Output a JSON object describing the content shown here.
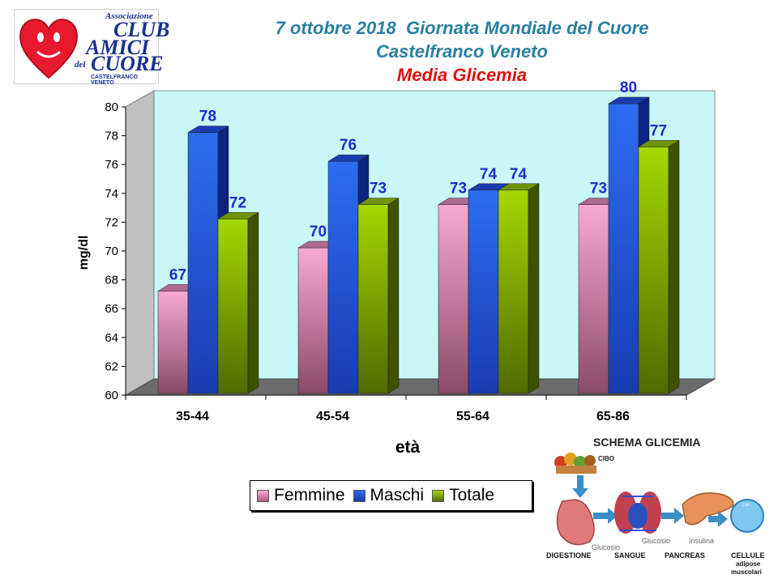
{
  "logo": {
    "line1": "Associazione",
    "line2": "CLUB",
    "line3": "AMICI",
    "line4a": "del",
    "line4b": "CUORE",
    "line5": "CASTELFRANCO VENETO"
  },
  "header": {
    "title": "7 ottobre 2018  Giornata Mondiale del Cuore",
    "subtitle": "Castelfranco Veneto",
    "chart_title": "Media Glicemia"
  },
  "colors": {
    "femmine": "#f4a6cf",
    "maschi": "#1f5fe0",
    "totale": "#9cd000",
    "background": "#c9f7f7",
    "label": "#1a2cd0"
  },
  "chart_data": {
    "type": "bar",
    "title": "Media Glicemia",
    "xlabel": "età",
    "ylabel": "mg/dl",
    "ylim": [
      60,
      80
    ],
    "yticks": [
      60,
      62,
      64,
      66,
      68,
      70,
      72,
      74,
      76,
      78,
      80
    ],
    "categories": [
      "35-44",
      "45-54",
      "55-64",
      "65-86"
    ],
    "series": [
      {
        "name": "Femmine",
        "values": [
          67,
          70,
          73,
          73
        ]
      },
      {
        "name": "Maschi",
        "values": [
          78,
          76,
          74,
          80
        ]
      },
      {
        "name": "Totale",
        "values": [
          72,
          73,
          74,
          77
        ]
      }
    ],
    "legend": "bottom",
    "grid": false
  },
  "schema": {
    "title": "SCHEMA GLICEMIA",
    "cibo": "CIBO",
    "glucosio1": "Glucosio",
    "glucosio2": "Glucosio",
    "insulina": "Insulina",
    "cell": "Cell",
    "digestione": "DIGESTIONE",
    "sangue": "SANGUE",
    "pancreas": "PANCREAS",
    "cellule": "CELLULE",
    "adipose": "adipose",
    "muscolari": "muscolari"
  }
}
